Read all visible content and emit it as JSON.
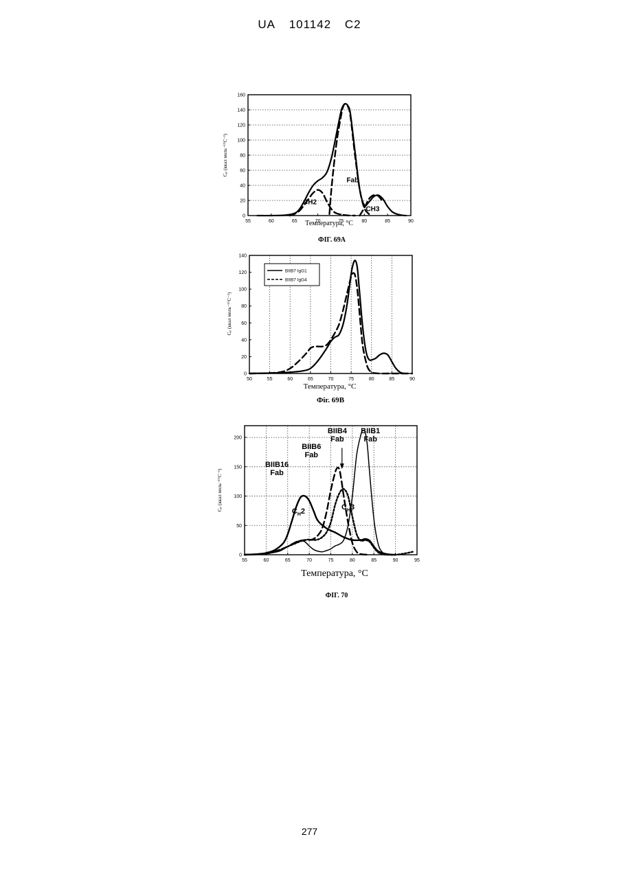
{
  "header": {
    "country": "UA",
    "number": "101142",
    "kind": "C2"
  },
  "page_number": "277",
  "chart_data": [
    {
      "type": "line",
      "caption": "ФІГ. 69А",
      "xlabel": "Температура, °С",
      "ylabel": "Cₚ (ккал моль⁻¹°С⁻¹)",
      "xlim": [
        55,
        90
      ],
      "ylim": [
        0,
        160
      ],
      "xticks": [
        55,
        60,
        65,
        70,
        75,
        80,
        85,
        90
      ],
      "yticks": [
        0,
        20,
        40,
        60,
        80,
        100,
        120,
        140,
        160
      ],
      "grid": "horizontal dotted",
      "annotations": [
        {
          "text": "Fab",
          "x": 77.5,
          "y": 44
        },
        {
          "text": "CH2",
          "x": 68.3,
          "y": 15
        },
        {
          "text": "CH3",
          "x": 81.8,
          "y": 6
        }
      ],
      "series": [
        {
          "style": "solid",
          "x": [
            57,
            60,
            63,
            65,
            66,
            67,
            68,
            69,
            70,
            71,
            72,
            73,
            74,
            75,
            75.5,
            76,
            76.5,
            77,
            78,
            79,
            80,
            81,
            82,
            83,
            84,
            85,
            86,
            87,
            88,
            89
          ],
          "y": [
            0,
            0,
            0.5,
            3,
            8,
            18,
            30,
            40,
            46,
            50,
            58,
            78,
            108,
            138,
            146,
            148,
            145,
            135,
            85,
            35,
            14,
            18,
            25,
            27,
            22,
            12,
            5,
            2,
            0.5,
            0
          ]
        },
        {
          "style": "dashed",
          "x": [
            72.5,
            73,
            74,
            75,
            75.5,
            76,
            76.5,
            77,
            78,
            79,
            80,
            81
          ],
          "y": [
            2,
            40,
            95,
            132,
            145,
            148,
            144,
            132,
            80,
            35,
            10,
            2
          ]
        },
        {
          "style": "dashed",
          "x": [
            64,
            66,
            68,
            69,
            70,
            71,
            72,
            73,
            74,
            76,
            78
          ],
          "y": [
            0,
            6,
            22,
            30,
            34,
            30,
            18,
            8,
            3,
            0.5,
            0
          ]
        },
        {
          "style": "dashed",
          "x": [
            79,
            80,
            81,
            82,
            83,
            84
          ],
          "y": [
            0,
            10,
            22,
            27,
            26,
            18
          ]
        }
      ]
    },
    {
      "type": "line",
      "caption": "Фіг. 69В",
      "xlabel": "Температура, °С",
      "ylabel": "Cₚ (ккал моль⁻¹°С⁻¹)",
      "xlim": [
        50,
        90
      ],
      "ylim": [
        0,
        140
      ],
      "xticks": [
        50,
        55,
        60,
        65,
        70,
        75,
        80,
        85,
        90
      ],
      "yticks": [
        0,
        20,
        40,
        60,
        80,
        100,
        120,
        140
      ],
      "grid": "vertical dotted",
      "legend": "top-left",
      "series": [
        {
          "name": "BIIB7 IgG1",
          "style": "solid",
          "x": [
            50,
            55,
            60,
            63,
            65,
            67,
            69,
            70,
            71,
            72,
            73,
            74,
            75,
            75.5,
            76,
            76.5,
            77,
            77.5,
            78,
            78.5,
            79,
            79.5,
            80,
            81,
            82,
            83,
            84,
            85,
            86,
            87,
            88
          ],
          "y": [
            0,
            0.5,
            1.5,
            3,
            6,
            16,
            30,
            38,
            43,
            46,
            58,
            82,
            118,
            130,
            134,
            126,
            100,
            72,
            48,
            30,
            20,
            16,
            16,
            18,
            22,
            24,
            22,
            14,
            6,
            1.5,
            0
          ]
        },
        {
          "name": "BIIB7 IgG4",
          "style": "dashed",
          "x": [
            50,
            55,
            58,
            60,
            62,
            64,
            65,
            66,
            67,
            68,
            69,
            70,
            71,
            72,
            73,
            74,
            75,
            75.5,
            76,
            76.5,
            77,
            77.5,
            78,
            79,
            80,
            81,
            82,
            85,
            90
          ],
          "y": [
            0,
            0.5,
            2,
            6,
            14,
            24,
            30,
            32,
            32,
            32,
            34,
            40,
            48,
            58,
            75,
            95,
            115,
            119,
            116,
            100,
            75,
            48,
            28,
            8,
            1.5,
            0.3,
            0,
            0,
            0
          ]
        }
      ]
    },
    {
      "type": "line",
      "caption": "ФІГ. 70",
      "xlabel": "Температура, °С",
      "ylabel": "Cₚ (ккал моль⁻¹°С⁻¹)",
      "xlim": [
        55,
        95
      ],
      "ylim": [
        0,
        220
      ],
      "xticks": [
        55,
        60,
        65,
        70,
        75,
        80,
        85,
        90,
        95
      ],
      "yticks": [
        0,
        50,
        100,
        150,
        200
      ],
      "grid": "dotted",
      "annotations": [
        {
          "text": "BIIB1",
          "x": 84.2,
          "y": 207,
          "sub": ""
        },
        {
          "text": "Fab",
          "x": 84.2,
          "y": 193,
          "sub": ""
        },
        {
          "text": "BIIB4",
          "x": 76.5,
          "y": 207,
          "sub": ""
        },
        {
          "text": "Fab",
          "x": 76.5,
          "y": 193,
          "sub": ""
        },
        {
          "text": "BIIB6",
          "x": 70.5,
          "y": 180,
          "sub": ""
        },
        {
          "text": "Fab",
          "x": 70.5,
          "y": 166,
          "sub": ""
        },
        {
          "text": "BIIB16",
          "x": 62.5,
          "y": 150,
          "sub": ""
        },
        {
          "text": "Fab",
          "x": 62.5,
          "y": 136,
          "sub": ""
        },
        {
          "text": "C",
          "x": 67.5,
          "y": 70,
          "sub": "H",
          "tail": "2"
        },
        {
          "text": "C",
          "x": 79,
          "y": 77,
          "sub": "H",
          "tail": "3"
        }
      ],
      "series": [
        {
          "name": "BIIB16 Fab",
          "style": "solid-bold",
          "x": [
            55,
            58,
            60,
            62,
            64,
            65,
            66,
            67,
            68,
            69,
            70,
            71,
            72,
            74,
            76,
            78,
            80,
            82,
            83,
            84,
            85,
            86,
            88,
            90
          ],
          "y": [
            0,
            1,
            3,
            8,
            20,
            35,
            58,
            82,
            98,
            100,
            92,
            75,
            58,
            45,
            38,
            30,
            25,
            25,
            27,
            24,
            14,
            6,
            1,
            0
          ]
        },
        {
          "name": "BIIB1 Fab",
          "style": "solid-thin",
          "x": [
            55,
            60,
            63,
            65,
            67,
            68,
            69,
            70,
            71,
            72,
            73,
            74,
            75,
            76,
            77,
            78,
            79,
            80,
            81,
            82,
            82.5,
            83,
            83.5,
            84,
            85,
            86,
            87,
            88,
            90
          ],
          "y": [
            0,
            2,
            6,
            14,
            22,
            24,
            22,
            15,
            9,
            6,
            5,
            7,
            10,
            15,
            18,
            25,
            50,
            100,
            170,
            205,
            212,
            208,
            185,
            140,
            60,
            18,
            4,
            1,
            0
          ]
        },
        {
          "name": "BIIB6 Fab",
          "style": "dashed",
          "x": [
            55,
            60,
            63,
            65,
            66,
            67,
            68,
            69,
            70,
            71,
            72,
            73,
            74,
            75,
            76,
            76.5,
            77,
            77.5,
            78,
            79,
            80,
            81,
            82,
            84
          ],
          "y": [
            0,
            2,
            8,
            14,
            18,
            22,
            24,
            25,
            25,
            27,
            33,
            45,
            72,
            110,
            140,
            148,
            145,
            125,
            100,
            55,
            20,
            5,
            1,
            0
          ]
        },
        {
          "name": "BIIB4 Fab",
          "style": "dotted",
          "x": [
            55,
            60,
            63,
            65,
            67,
            68,
            69,
            70,
            71,
            72,
            73,
            74,
            75,
            76,
            77,
            78,
            79,
            80,
            81,
            82,
            83,
            84,
            85,
            86,
            87,
            88,
            90,
            92,
            94
          ],
          "y": [
            0,
            2,
            8,
            14,
            20,
            23,
            25,
            26,
            25,
            26,
            30,
            38,
            55,
            85,
            105,
            112,
            100,
            65,
            35,
            24,
            25,
            22,
            12,
            4,
            1,
            0,
            0,
            2,
            5
          ]
        }
      ]
    }
  ]
}
